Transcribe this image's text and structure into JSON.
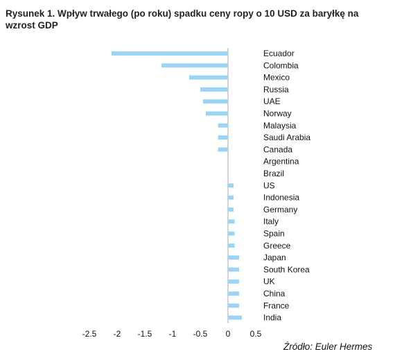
{
  "title": "Rysunek 1. Wpływ trwałego (po roku) spadku ceny ropy o 10 USD za baryłkę na wzrost GDP",
  "source": "Źródło: Euler Hermes",
  "chart_data": {
    "type": "bar",
    "orientation": "horizontal",
    "title": "Rysunek 1. Wpływ trwałego (po roku) spadku ceny ropy o 10 USD za baryłkę na wzrost GDP",
    "xlabel": "",
    "ylabel": "",
    "categories": [
      "Ecuador",
      "Colombia",
      "Mexico",
      "Russia",
      "UAE",
      "Norway",
      "Malaysia",
      "Saudi Arabia",
      "Canada",
      "Argentina",
      "Brazil",
      "US",
      "Indonesia",
      "Germany",
      "Italy",
      "Spain",
      "Greece",
      "Japan",
      "South Korea",
      "UK",
      "China",
      "France",
      "India"
    ],
    "values": [
      -2.1,
      -1.2,
      -0.7,
      -0.5,
      -0.45,
      -0.4,
      -0.18,
      -0.18,
      -0.18,
      0,
      0,
      0.1,
      0.1,
      0.1,
      0.12,
      0.12,
      0.12,
      0.2,
      0.2,
      0.2,
      0.2,
      0.2,
      0.25
    ],
    "xlim": [
      -2.5,
      0.5
    ],
    "xticks": [
      "-2.5",
      "-2",
      "-1.5",
      "-1",
      "-0.5",
      "0",
      "0.5"
    ],
    "xtick_values": [
      -2.5,
      -2,
      -1.5,
      -1,
      -0.5,
      0,
      0.5
    ],
    "grid": false,
    "legend": "none",
    "bar_color": "#9bd4f5",
    "axis_color": "#aaaaaa"
  }
}
